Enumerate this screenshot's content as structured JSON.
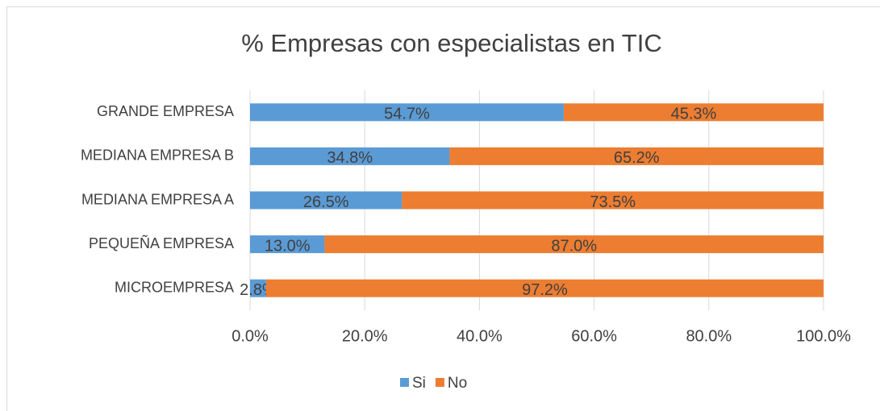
{
  "chart_data": {
    "type": "stacked_barh",
    "title": "% Empresas con especialistas en TIC",
    "categories": [
      "GRANDE EMPRESA",
      "MEDIANA EMPRESA B",
      "MEDIANA EMPRESA A",
      "PEQUEÑA EMPRESA",
      "MICROEMPRESA"
    ],
    "series": [
      {
        "name": "Si",
        "color": "#5b9bd5",
        "values": [
          54.7,
          34.8,
          26.5,
          13.0,
          2.8
        ],
        "value_labels": [
          "54.7%",
          "34.8%",
          "26.5%",
          "13.0%",
          "2.8%"
        ]
      },
      {
        "name": "No",
        "color": "#ed7d31",
        "values": [
          45.3,
          65.2,
          73.5,
          87.0,
          97.2
        ],
        "value_labels": [
          "45.3%",
          "65.2%",
          "73.5%",
          "87.0%",
          "97.2%"
        ]
      }
    ],
    "xlim": [
      0,
      100
    ],
    "xticks": [
      {
        "value": 0,
        "label": "0.0%"
      },
      {
        "value": 20,
        "label": "20.0%"
      },
      {
        "value": 40,
        "label": "40.0%"
      },
      {
        "value": 60,
        "label": "60.0%"
      },
      {
        "value": 80,
        "label": "80.0%"
      },
      {
        "value": 100,
        "label": "100.0%"
      }
    ],
    "grid": true,
    "legend": "bottom"
  }
}
